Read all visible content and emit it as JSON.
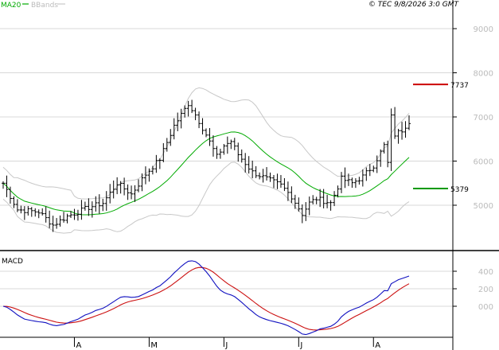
{
  "header": {
    "ma_label": "MA20",
    "bb_label": "BBands",
    "copyright": "© TEC 9/8/2026 3:0 GMT"
  },
  "colors": {
    "ma": "#00aa00",
    "bbands": "#c8c8c8",
    "resistance": "#cc0000",
    "support": "#009900",
    "macd_line": "#1010c0",
    "signal_line": "#cc1010",
    "bars": "#000000",
    "grid": "#d8d8d8",
    "axis_text": "#bbbbbb"
  },
  "chart_data": [
    {
      "type": "ohlc",
      "name": "price",
      "y_ticks": [
        9000,
        8000,
        7000,
        6000,
        5000
      ],
      "y_tick_labels": [
        "9000",
        "8000",
        "7000",
        "6000",
        "5000"
      ],
      "ylim": [
        4500,
        9500
      ],
      "x_month_labels": [
        "A",
        "M",
        "J",
        "J",
        "A"
      ],
      "x_month_positions": [
        20,
        41,
        62,
        83,
        104
      ],
      "x_count": 115,
      "levels": [
        {
          "value": 7737,
          "label": "7737",
          "color": "#cc0000"
        },
        {
          "value": 5379,
          "label": "5379",
          "color": "#009900"
        }
      ],
      "overlays": [
        "MA20",
        "BBands"
      ]
    },
    {
      "type": "line",
      "name": "MACD",
      "title": "MACD",
      "y_ticks": [
        400,
        200,
        0
      ],
      "y_tick_labels": [
        "400",
        "200",
        "000"
      ],
      "ylim": [
        -180,
        560
      ],
      "series": [
        "macd",
        "signal"
      ]
    }
  ]
}
